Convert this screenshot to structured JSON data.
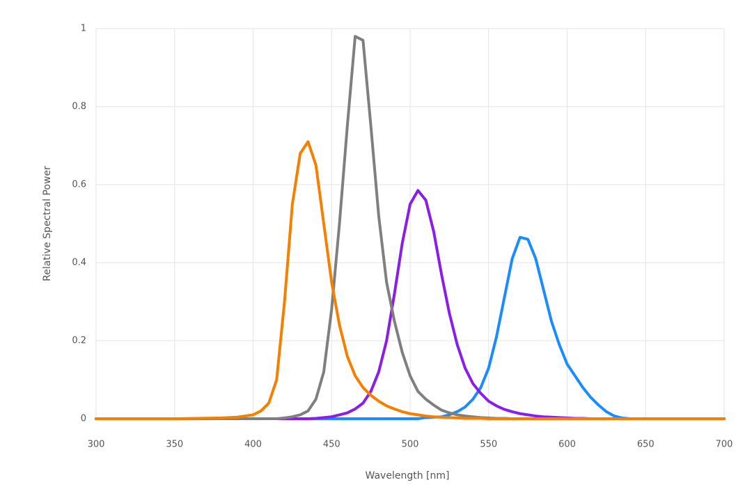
{
  "chart_data": {
    "type": "line",
    "xlabel": "Wavelength [nm]",
    "ylabel": "Relative Spectral Power",
    "x": [
      300,
      350,
      380,
      390,
      400,
      405,
      410,
      415,
      420,
      425,
      430,
      435,
      440,
      445,
      450,
      455,
      460,
      465,
      470,
      475,
      480,
      485,
      490,
      495,
      500,
      505,
      510,
      515,
      520,
      525,
      530,
      535,
      540,
      545,
      550,
      555,
      560,
      565,
      570,
      575,
      580,
      585,
      590,
      595,
      600,
      605,
      610,
      615,
      620,
      625,
      630,
      635,
      640,
      650,
      700
    ],
    "series": [
      {
        "color": "#1a8cff",
        "values": [
          0,
          0,
          0,
          0,
          0,
          0,
          0,
          0,
          0,
          0,
          0,
          0,
          0,
          0,
          0,
          0,
          0,
          0,
          0,
          0,
          0,
          0,
          0,
          0,
          0,
          0,
          0.003,
          0.004,
          0.005,
          0.01,
          0.018,
          0.03,
          0.05,
          0.08,
          0.13,
          0.21,
          0.31,
          0.41,
          0.465,
          0.46,
          0.41,
          0.33,
          0.25,
          0.19,
          0.14,
          0.11,
          0.08,
          0.055,
          0.035,
          0.018,
          0.007,
          0.002,
          0,
          0,
          0
        ]
      },
      {
        "color": "#8a1ee8",
        "values": [
          0,
          0,
          0,
          0,
          0,
          0,
          0,
          0,
          0,
          0,
          0,
          0,
          0.001,
          0.003,
          0.005,
          0.01,
          0.015,
          0.025,
          0.04,
          0.07,
          0.12,
          0.2,
          0.32,
          0.45,
          0.55,
          0.585,
          0.56,
          0.48,
          0.37,
          0.27,
          0.19,
          0.13,
          0.09,
          0.065,
          0.045,
          0.033,
          0.024,
          0.018,
          0.013,
          0.01,
          0.007,
          0.005,
          0.004,
          0.003,
          0.002,
          0.001,
          0.001,
          0,
          0,
          0,
          0,
          0,
          0,
          0,
          0
        ]
      },
      {
        "color": "#7f7f7f",
        "values": [
          0,
          0,
          0,
          0,
          0,
          0,
          0,
          0,
          0.002,
          0.005,
          0.01,
          0.02,
          0.05,
          0.12,
          0.28,
          0.5,
          0.75,
          0.98,
          0.97,
          0.75,
          0.52,
          0.35,
          0.25,
          0.17,
          0.11,
          0.07,
          0.05,
          0.035,
          0.022,
          0.015,
          0.01,
          0.007,
          0.005,
          0.003,
          0.002,
          0.001,
          0.001,
          0,
          0,
          0,
          0,
          0,
          0,
          0,
          0,
          0,
          0,
          0,
          0,
          0,
          0,
          0,
          0,
          0,
          0
        ]
      },
      {
        "color": "#f77f00",
        "values": [
          0,
          0,
          0.002,
          0.004,
          0.01,
          0.02,
          0.04,
          0.1,
          0.3,
          0.55,
          0.68,
          0.71,
          0.65,
          0.5,
          0.35,
          0.24,
          0.16,
          0.11,
          0.08,
          0.06,
          0.045,
          0.033,
          0.025,
          0.018,
          0.013,
          0.01,
          0.007,
          0.005,
          0.004,
          0.003,
          0.002,
          0.001,
          0.001,
          0.001,
          0,
          0,
          0,
          0,
          0,
          0,
          0,
          0,
          0,
          0,
          0,
          0,
          0,
          0,
          0,
          0,
          0,
          0,
          0,
          0,
          0
        ]
      }
    ],
    "xlim": [
      300,
      700
    ],
    "xticks": [
      300,
      350,
      400,
      450,
      500,
      550,
      600,
      650,
      700
    ],
    "ylim": [
      0,
      1
    ],
    "yticks": [
      0,
      0.2,
      0.4,
      0.6,
      0.8,
      1
    ],
    "grid": true
  }
}
